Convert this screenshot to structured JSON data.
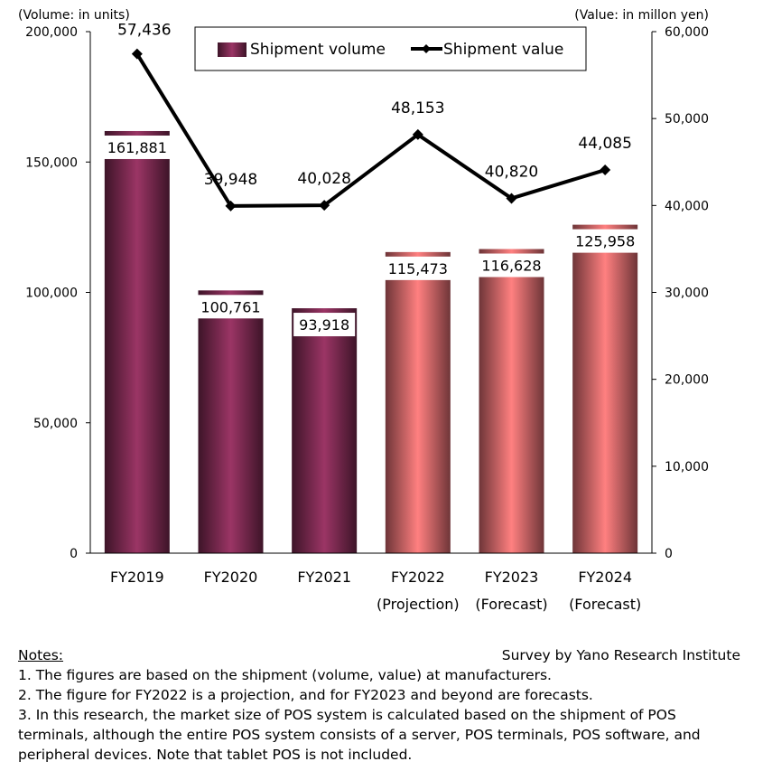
{
  "chart_data": {
    "type": "bar+line",
    "categories": [
      "FY2019",
      "FY2020",
      "FY2021",
      "FY2022",
      "FY2023",
      "FY2024"
    ],
    "category_sublabels": [
      "",
      "",
      "",
      "(Projection)",
      "(Forecast)",
      "(Forecast)"
    ],
    "series": [
      {
        "name": "Shipment volume",
        "type": "bar",
        "axis": "left",
        "values": [
          161881,
          100761,
          93918,
          115473,
          116628,
          125958
        ],
        "labels": [
          "161,881",
          "100,761",
          "93,918",
          "115,473",
          "116,628",
          "125,958"
        ]
      },
      {
        "name": "Shipment value",
        "type": "line",
        "axis": "right",
        "values": [
          57436,
          39948,
          40028,
          48153,
          40820,
          44085
        ],
        "labels": [
          "57,436",
          "39,948",
          "40,028",
          "48,153",
          "40,820",
          "44,085"
        ]
      }
    ],
    "left_axis": {
      "label": "(Volume: in units)",
      "ylim": [
        0,
        200000
      ],
      "ticks": [
        "0",
        "50,000",
        "100,000",
        "150,000",
        "200,000"
      ]
    },
    "right_axis": {
      "label": "(Value: in millon yen)",
      "ylim": [
        0,
        60000
      ],
      "ticks": [
        "0",
        "10,000",
        "20,000",
        "30,000",
        "40,000",
        "50,000",
        "60,000"
      ]
    },
    "legend_position": "top-center",
    "grid": false,
    "colors": {
      "actual_bar": "#9b3565",
      "actual_bar_edge": "#3d1428",
      "forecast_bar": "#ff8080",
      "forecast_bar_edge": "#6e3538",
      "line": "#000000"
    }
  },
  "notes": {
    "heading": "Notes:",
    "source": "Survey by Yano Research Institute",
    "items": [
      "1. The figures are based on the shipment (volume, value) at manufacturers.",
      "2. The figure for FY2022 is a projection, and for FY2023 and beyond are forecasts.",
      "3. In this research, the market size of POS system is calculated based on the shipment of POS terminals, although the entire POS system consists of a server, POS terminals, POS software, and peripheral devices. Note that tablet POS is not included."
    ]
  }
}
